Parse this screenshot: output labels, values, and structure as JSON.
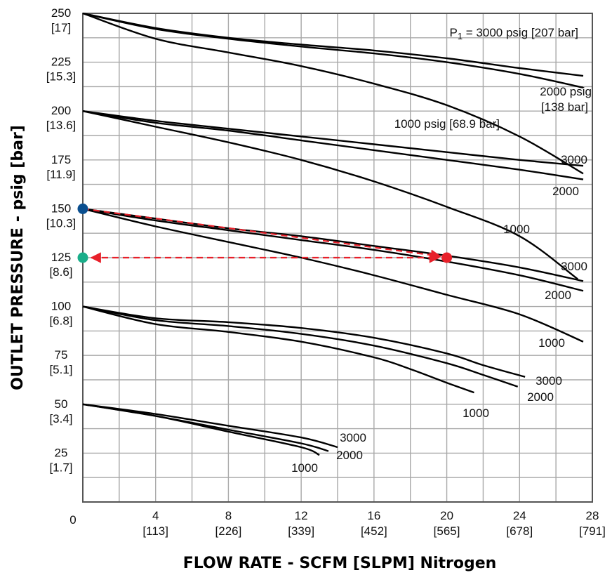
{
  "chart_data": {
    "type": "line",
    "xlabel": "FLOW RATE - SCFM [SLPM] Nitrogen",
    "ylabel": "OUTLET PRESSURE - psig [bar]",
    "xlim": [
      0,
      28
    ],
    "ylim": [
      0,
      250
    ],
    "grid": true,
    "x_ticks": [
      {
        "value": 0,
        "label": "0",
        "sub": ""
      },
      {
        "value": 4,
        "label": "4",
        "sub": "[113]"
      },
      {
        "value": 8,
        "label": "8",
        "sub": "[226]"
      },
      {
        "value": 12,
        "label": "12",
        "sub": "[339]"
      },
      {
        "value": 16,
        "label": "16",
        "sub": "[452]"
      },
      {
        "value": 20,
        "label": "20",
        "sub": "[565]"
      },
      {
        "value": 24,
        "label": "24",
        "sub": "[678]"
      },
      {
        "value": 28,
        "label": "28",
        "sub": "[791]"
      }
    ],
    "y_ticks": [
      {
        "value": 250,
        "label": "250",
        "sub": "[17]"
      },
      {
        "value": 225,
        "label": "225",
        "sub": "[15.3]"
      },
      {
        "value": 200,
        "label": "200",
        "sub": "[13.6]"
      },
      {
        "value": 175,
        "label": "175",
        "sub": "[11.9]"
      },
      {
        "value": 150,
        "label": "150",
        "sub": "[10.3]"
      },
      {
        "value": 125,
        "label": "125",
        "sub": "[8.6]"
      },
      {
        "value": 100,
        "label": "100",
        "sub": "[6.8]"
      },
      {
        "value": 75,
        "label": "75",
        "sub": "[5.1]"
      },
      {
        "value": 50,
        "label": "50",
        "sub": "[3.4]"
      },
      {
        "value": 25,
        "label": "25",
        "sub": "[1.7]"
      }
    ],
    "series": [
      {
        "name": "P1 = 3000 psig [207 bar]",
        "set_point": 250,
        "inlet": 3000,
        "x": [
          0,
          4,
          8,
          12,
          16,
          20,
          24,
          27.5
        ],
        "y": [
          250,
          242.5,
          237.5,
          234,
          231,
          227,
          222,
          218
        ]
      },
      {
        "name": "2000 psig [138 bar]",
        "set_point": 250,
        "inlet": 2000,
        "x": [
          0,
          4,
          8,
          12,
          16,
          20,
          24,
          27.5
        ],
        "y": [
          250,
          242,
          237,
          233,
          229.5,
          225,
          219,
          212
        ]
      },
      {
        "name": "1000 psig [68.9 bar]",
        "set_point": 250,
        "inlet": 1000,
        "x": [
          0,
          4,
          8,
          12,
          16,
          20,
          24,
          27.5
        ],
        "y": [
          250,
          237,
          230,
          223,
          214,
          203,
          187,
          168
        ]
      },
      {
        "name": "3000",
        "set_point": 200,
        "inlet": 3000,
        "x": [
          0,
          4,
          8,
          12,
          16,
          20,
          24,
          27.5
        ],
        "y": [
          200,
          195,
          191,
          187,
          183,
          179,
          175,
          172
        ]
      },
      {
        "name": "2000",
        "set_point": 200,
        "inlet": 2000,
        "x": [
          0,
          4,
          8,
          12,
          16,
          20,
          24,
          27.5
        ],
        "y": [
          200,
          194,
          190,
          185,
          180,
          175,
          170,
          165
        ]
      },
      {
        "name": "1000",
        "set_point": 200,
        "inlet": 1000,
        "x": [
          0,
          4,
          8,
          12,
          16,
          20,
          24,
          27.2
        ],
        "y": [
          200,
          192,
          184,
          175,
          164,
          151,
          136,
          114
        ]
      },
      {
        "name": "3000",
        "set_point": 150,
        "inlet": 3000,
        "x": [
          0,
          4,
          8,
          12,
          16,
          20,
          24,
          27.5
        ],
        "y": [
          150,
          145,
          140,
          136,
          131,
          126,
          120,
          113
        ]
      },
      {
        "name": "2000",
        "set_point": 150,
        "inlet": 2000,
        "x": [
          0,
          4,
          8,
          12,
          16,
          20,
          24,
          27.5
        ],
        "y": [
          150,
          144,
          139,
          134,
          129,
          123,
          116,
          108
        ]
      },
      {
        "name": "1000",
        "set_point": 150,
        "inlet": 1000,
        "x": [
          0,
          4,
          8,
          12,
          16,
          20,
          24,
          27.5
        ],
        "y": [
          150,
          141,
          133,
          125,
          116,
          106,
          96,
          82
        ]
      },
      {
        "name": "3000",
        "set_point": 100,
        "inlet": 3000,
        "x": [
          0,
          4,
          8,
          12,
          16,
          20,
          22,
          24.3
        ],
        "y": [
          100,
          94,
          92,
          89,
          84,
          76,
          70,
          64
        ]
      },
      {
        "name": "2000",
        "set_point": 100,
        "inlet": 2000,
        "x": [
          0,
          4,
          8,
          12,
          16,
          20,
          22,
          23.9
        ],
        "y": [
          100,
          93,
          90,
          86,
          80,
          71,
          65,
          59
        ]
      },
      {
        "name": "1000",
        "set_point": 100,
        "inlet": 1000,
        "x": [
          0,
          4,
          8,
          12,
          16,
          18,
          20,
          21.5
        ],
        "y": [
          100,
          91,
          87,
          82,
          74,
          68,
          61,
          56
        ]
      },
      {
        "name": "3000",
        "set_point": 50,
        "inlet": 3000,
        "x": [
          0,
          4,
          8,
          12,
          14
        ],
        "y": [
          50,
          45,
          39,
          33,
          28
        ]
      },
      {
        "name": "2000",
        "set_point": 50,
        "inlet": 2000,
        "x": [
          0,
          4,
          8,
          12,
          13.5
        ],
        "y": [
          50,
          44,
          37,
          30,
          26
        ]
      },
      {
        "name": "1000",
        "set_point": 50,
        "inlet": 1000,
        "x": [
          0,
          4,
          8,
          12,
          13
        ],
        "y": [
          50,
          44,
          36,
          28,
          24
        ]
      }
    ],
    "annotations": {
      "points": [
        {
          "x": 0,
          "y": 150,
          "color": "#0a4f8f"
        },
        {
          "x": 0,
          "y": 125,
          "color": "#1aae8a"
        },
        {
          "x": 20,
          "y": 125,
          "color": "#e8202a"
        }
      ],
      "arrow_color": "#e8202a"
    }
  }
}
